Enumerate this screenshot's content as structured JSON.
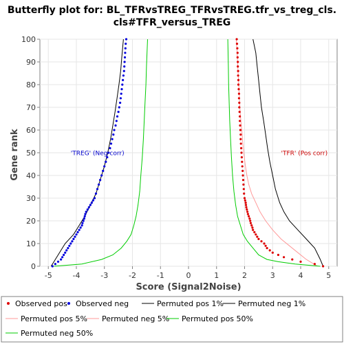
{
  "chart_data": {
    "type": "line",
    "title_lines": [
      "Butterfly plot for: BL_TFRvsTREG_TFRvsTREG.tfr_vs_treg_cls.",
      "cls#TFR_versus_TREG"
    ],
    "xlabel": "Score (Signal2Noise)",
    "ylabel": "Gene rank",
    "xlim": [
      -5.3,
      5.3
    ],
    "ylim": [
      0,
      100
    ],
    "x_ticks": [
      "-5",
      "-4",
      "-3",
      "-2",
      "-1",
      "0",
      "1",
      "2",
      "3",
      "4",
      "5"
    ],
    "y_ticks": [
      "0",
      "10",
      "20",
      "30",
      "40",
      "50",
      "60",
      "70",
      "80",
      "90",
      "100"
    ],
    "annotations": [
      {
        "text": "'TREG' (Neg corr)",
        "x": -4.2,
        "y": 49,
        "color": "#0000cc"
      },
      {
        "text": "'TFR' (Pos corr)",
        "x": 3.3,
        "y": 49,
        "color": "#cc0000"
      }
    ],
    "series": [
      {
        "name": "Observed pos",
        "color": "#dd0000",
        "kind": "points",
        "points": [
          [
            4.8,
            0
          ],
          [
            4.5,
            1
          ],
          [
            4.0,
            2
          ],
          [
            3.7,
            3
          ],
          [
            3.4,
            4
          ],
          [
            3.2,
            5
          ],
          [
            3.0,
            6
          ],
          [
            2.9,
            7
          ],
          [
            2.8,
            8
          ],
          [
            2.75,
            9
          ],
          [
            2.7,
            10
          ],
          [
            2.6,
            11
          ],
          [
            2.5,
            12
          ],
          [
            2.45,
            13
          ],
          [
            2.4,
            14
          ],
          [
            2.35,
            15
          ],
          [
            2.3,
            16
          ],
          [
            2.28,
            17
          ],
          [
            2.25,
            18
          ],
          [
            2.22,
            19
          ],
          [
            2.2,
            20
          ],
          [
            2.18,
            21
          ],
          [
            2.15,
            22
          ],
          [
            2.12,
            23
          ],
          [
            2.1,
            24
          ],
          [
            2.08,
            25
          ],
          [
            2.06,
            26
          ],
          [
            2.05,
            27
          ],
          [
            2.04,
            28
          ],
          [
            2.02,
            29
          ],
          [
            2.0,
            30
          ],
          [
            1.98,
            32
          ],
          [
            1.97,
            34
          ],
          [
            1.96,
            36
          ],
          [
            1.95,
            38
          ],
          [
            1.94,
            40
          ],
          [
            1.93,
            42
          ],
          [
            1.92,
            44
          ],
          [
            1.91,
            46
          ],
          [
            1.9,
            48
          ],
          [
            1.89,
            50
          ],
          [
            1.88,
            52
          ],
          [
            1.87,
            54
          ],
          [
            1.86,
            56
          ],
          [
            1.86,
            58
          ],
          [
            1.85,
            60
          ],
          [
            1.84,
            62
          ],
          [
            1.83,
            64
          ],
          [
            1.83,
            66
          ],
          [
            1.82,
            68
          ],
          [
            1.81,
            70
          ],
          [
            1.81,
            72
          ],
          [
            1.8,
            74
          ],
          [
            1.8,
            76
          ],
          [
            1.79,
            78
          ],
          [
            1.78,
            80
          ],
          [
            1.78,
            82
          ],
          [
            1.77,
            84
          ],
          [
            1.77,
            86
          ],
          [
            1.76,
            88
          ],
          [
            1.76,
            90
          ],
          [
            1.75,
            92
          ],
          [
            1.75,
            94
          ],
          [
            1.74,
            96
          ],
          [
            1.73,
            98
          ],
          [
            1.72,
            100
          ]
        ]
      },
      {
        "name": "Observed neg",
        "color": "#0000dd",
        "kind": "points",
        "points": [
          [
            -4.85,
            0
          ],
          [
            -4.75,
            1
          ],
          [
            -4.65,
            2
          ],
          [
            -4.55,
            3
          ],
          [
            -4.5,
            4
          ],
          [
            -4.45,
            5
          ],
          [
            -4.4,
            6
          ],
          [
            -4.35,
            7
          ],
          [
            -4.3,
            8
          ],
          [
            -4.25,
            9
          ],
          [
            -4.2,
            10
          ],
          [
            -4.15,
            11
          ],
          [
            -4.1,
            12
          ],
          [
            -4.05,
            13
          ],
          [
            -4.0,
            14
          ],
          [
            -3.95,
            15
          ],
          [
            -3.9,
            16
          ],
          [
            -3.85,
            17
          ],
          [
            -3.8,
            18
          ],
          [
            -3.78,
            19
          ],
          [
            -3.75,
            20
          ],
          [
            -3.72,
            21
          ],
          [
            -3.7,
            22
          ],
          [
            -3.68,
            23
          ],
          [
            -3.65,
            24
          ],
          [
            -3.6,
            25
          ],
          [
            -3.55,
            26
          ],
          [
            -3.5,
            27
          ],
          [
            -3.45,
            28
          ],
          [
            -3.4,
            29
          ],
          [
            -3.35,
            30
          ],
          [
            -3.3,
            32
          ],
          [
            -3.25,
            34
          ],
          [
            -3.2,
            36
          ],
          [
            -3.15,
            38
          ],
          [
            -3.1,
            40
          ],
          [
            -3.05,
            42
          ],
          [
            -3.0,
            44
          ],
          [
            -2.95,
            46
          ],
          [
            -2.9,
            48
          ],
          [
            -2.85,
            50
          ],
          [
            -2.8,
            52
          ],
          [
            -2.76,
            54
          ],
          [
            -2.72,
            56
          ],
          [
            -2.68,
            58
          ],
          [
            -2.65,
            60
          ],
          [
            -2.6,
            62
          ],
          [
            -2.57,
            64
          ],
          [
            -2.54,
            66
          ],
          [
            -2.5,
            68
          ],
          [
            -2.47,
            70
          ],
          [
            -2.44,
            72
          ],
          [
            -2.42,
            74
          ],
          [
            -2.4,
            76
          ],
          [
            -2.38,
            78
          ],
          [
            -2.36,
            80
          ],
          [
            -2.34,
            82
          ],
          [
            -2.32,
            84
          ],
          [
            -2.3,
            86
          ],
          [
            -2.29,
            88
          ],
          [
            -2.28,
            90
          ],
          [
            -2.27,
            92
          ],
          [
            -2.26,
            94
          ],
          [
            -2.25,
            96
          ],
          [
            -2.24,
            98
          ],
          [
            -2.22,
            100
          ]
        ]
      },
      {
        "name": "Permuted pos 1%",
        "color": "#000000",
        "kind": "line",
        "points": [
          [
            4.8,
            0
          ],
          [
            4.7,
            3
          ],
          [
            4.5,
            8
          ],
          [
            4.2,
            12
          ],
          [
            3.9,
            16
          ],
          [
            3.6,
            20
          ],
          [
            3.4,
            24
          ],
          [
            3.25,
            28
          ],
          [
            3.1,
            34
          ],
          [
            3.0,
            40
          ],
          [
            2.9,
            46
          ],
          [
            2.82,
            52
          ],
          [
            2.75,
            58
          ],
          [
            2.68,
            64
          ],
          [
            2.6,
            70
          ],
          [
            2.55,
            76
          ],
          [
            2.5,
            82
          ],
          [
            2.45,
            88
          ],
          [
            2.4,
            94
          ],
          [
            2.3,
            100
          ]
        ]
      },
      {
        "name": "Permuted neg 1%",
        "color": "#000000",
        "kind": "line",
        "points": [
          [
            -4.9,
            0
          ],
          [
            -4.8,
            2
          ],
          [
            -4.6,
            6
          ],
          [
            -4.4,
            10
          ],
          [
            -4.1,
            14
          ],
          [
            -3.9,
            18
          ],
          [
            -3.7,
            22
          ],
          [
            -3.5,
            27
          ],
          [
            -3.3,
            32
          ],
          [
            -3.15,
            38
          ],
          [
            -3.0,
            44
          ],
          [
            -2.88,
            50
          ],
          [
            -2.78,
            56
          ],
          [
            -2.7,
            62
          ],
          [
            -2.62,
            68
          ],
          [
            -2.55,
            74
          ],
          [
            -2.48,
            80
          ],
          [
            -2.42,
            86
          ],
          [
            -2.38,
            92
          ],
          [
            -2.32,
            100
          ]
        ]
      },
      {
        "name": "Permuted pos 5%",
        "color": "#ff9999",
        "kind": "line",
        "points": [
          [
            4.6,
            0
          ],
          [
            4.2,
            3
          ],
          [
            3.9,
            6
          ],
          [
            3.6,
            9
          ],
          [
            3.3,
            12
          ],
          [
            3.0,
            16
          ],
          [
            2.75,
            20
          ],
          [
            2.55,
            24
          ],
          [
            2.4,
            28
          ],
          [
            2.25,
            32
          ],
          [
            2.15,
            36
          ],
          [
            2.08,
            40
          ],
          [
            2.02,
            45
          ],
          [
            1.97,
            50
          ],
          [
            1.93,
            55
          ],
          [
            1.9,
            60
          ],
          [
            1.86,
            65
          ],
          [
            1.83,
            70
          ],
          [
            1.81,
            75
          ],
          [
            1.79,
            80
          ],
          [
            1.77,
            85
          ],
          [
            1.75,
            90
          ],
          [
            1.73,
            95
          ],
          [
            1.7,
            100
          ]
        ]
      },
      {
        "name": "Permuted neg 5%",
        "color": "#ff9999",
        "kind": "line",
        "points": []
      },
      {
        "name": "Permuted pos 50%",
        "color": "#00cc00",
        "kind": "line",
        "points": [
          [
            4.7,
            0
          ],
          [
            3.8,
            1
          ],
          [
            3.2,
            2
          ],
          [
            2.8,
            3
          ],
          [
            2.5,
            5
          ],
          [
            2.3,
            8
          ],
          [
            2.1,
            11
          ],
          [
            1.95,
            14
          ],
          [
            1.85,
            18
          ],
          [
            1.75,
            22
          ],
          [
            1.68,
            27
          ],
          [
            1.62,
            33
          ],
          [
            1.57,
            40
          ],
          [
            1.53,
            48
          ],
          [
            1.5,
            56
          ],
          [
            1.47,
            64
          ],
          [
            1.45,
            72
          ],
          [
            1.43,
            80
          ],
          [
            1.42,
            88
          ],
          [
            1.41,
            94
          ],
          [
            1.4,
            100
          ]
        ]
      },
      {
        "name": "Permuted neg 50%",
        "color": "#00cc00",
        "kind": "line",
        "points": [
          [
            -4.8,
            0
          ],
          [
            -3.8,
            1
          ],
          [
            -3.1,
            3
          ],
          [
            -2.7,
            5
          ],
          [
            -2.4,
            8
          ],
          [
            -2.2,
            11
          ],
          [
            -2.05,
            14
          ],
          [
            -1.95,
            18
          ],
          [
            -1.87,
            22
          ],
          [
            -1.8,
            27
          ],
          [
            -1.74,
            33
          ],
          [
            -1.7,
            40
          ],
          [
            -1.65,
            48
          ],
          [
            -1.61,
            56
          ],
          [
            -1.58,
            64
          ],
          [
            -1.55,
            72
          ],
          [
            -1.52,
            80
          ],
          [
            -1.5,
            88
          ],
          [
            -1.48,
            94
          ],
          [
            -1.46,
            100
          ]
        ]
      }
    ]
  }
}
